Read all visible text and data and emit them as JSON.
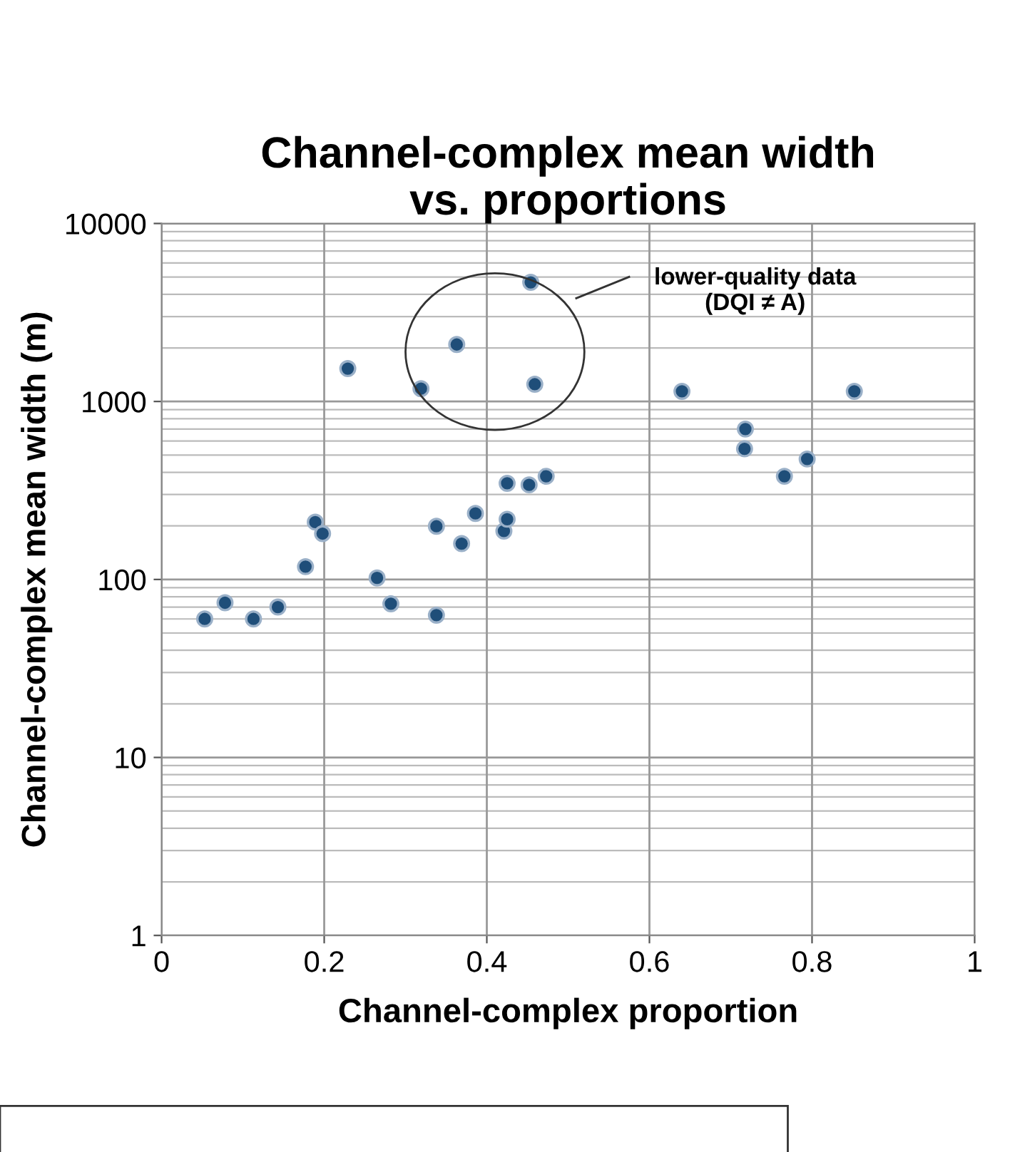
{
  "chart_data": {
    "type": "scatter",
    "title": "Channel-complex mean width\nvs. proportions",
    "xlabel": "Channel-complex proportion",
    "ylabel": "Channel-complex mean width (m)",
    "annotations": [
      "lower-quality data\n(DQI ≠ A)"
    ],
    "series": [
      {
        "color": "#1f4e79",
        "x": [
          0.053,
          0.078,
          0.113,
          0.143,
          0.177,
          0.189,
          0.198,
          0.229,
          0.265,
          0.282,
          0.319,
          0.338,
          0.338,
          0.363,
          0.369,
          0.386,
          0.421,
          0.425,
          0.425,
          0.452,
          0.454,
          0.459,
          0.473,
          0.64,
          0.717,
          0.718,
          0.766,
          0.794,
          0.852
        ],
        "values": [
          60,
          74,
          60,
          70,
          118,
          210,
          181,
          1530,
          102,
          73,
          1180,
          199,
          63,
          2090,
          159,
          235,
          187,
          347,
          218,
          340,
          4670,
          1250,
          380,
          1140,
          542,
          700,
          380,
          475,
          1140
        ]
      }
    ],
    "log": "y",
    "xlim": [
      0,
      1
    ],
    "ylim": [
      1,
      10000
    ],
    "xticks": [
      0,
      0.2,
      0.4,
      0.6,
      0.8,
      1
    ],
    "yticks": [
      1,
      10,
      100,
      1000,
      10000
    ],
    "grid": true,
    "marker": "circle"
  }
}
